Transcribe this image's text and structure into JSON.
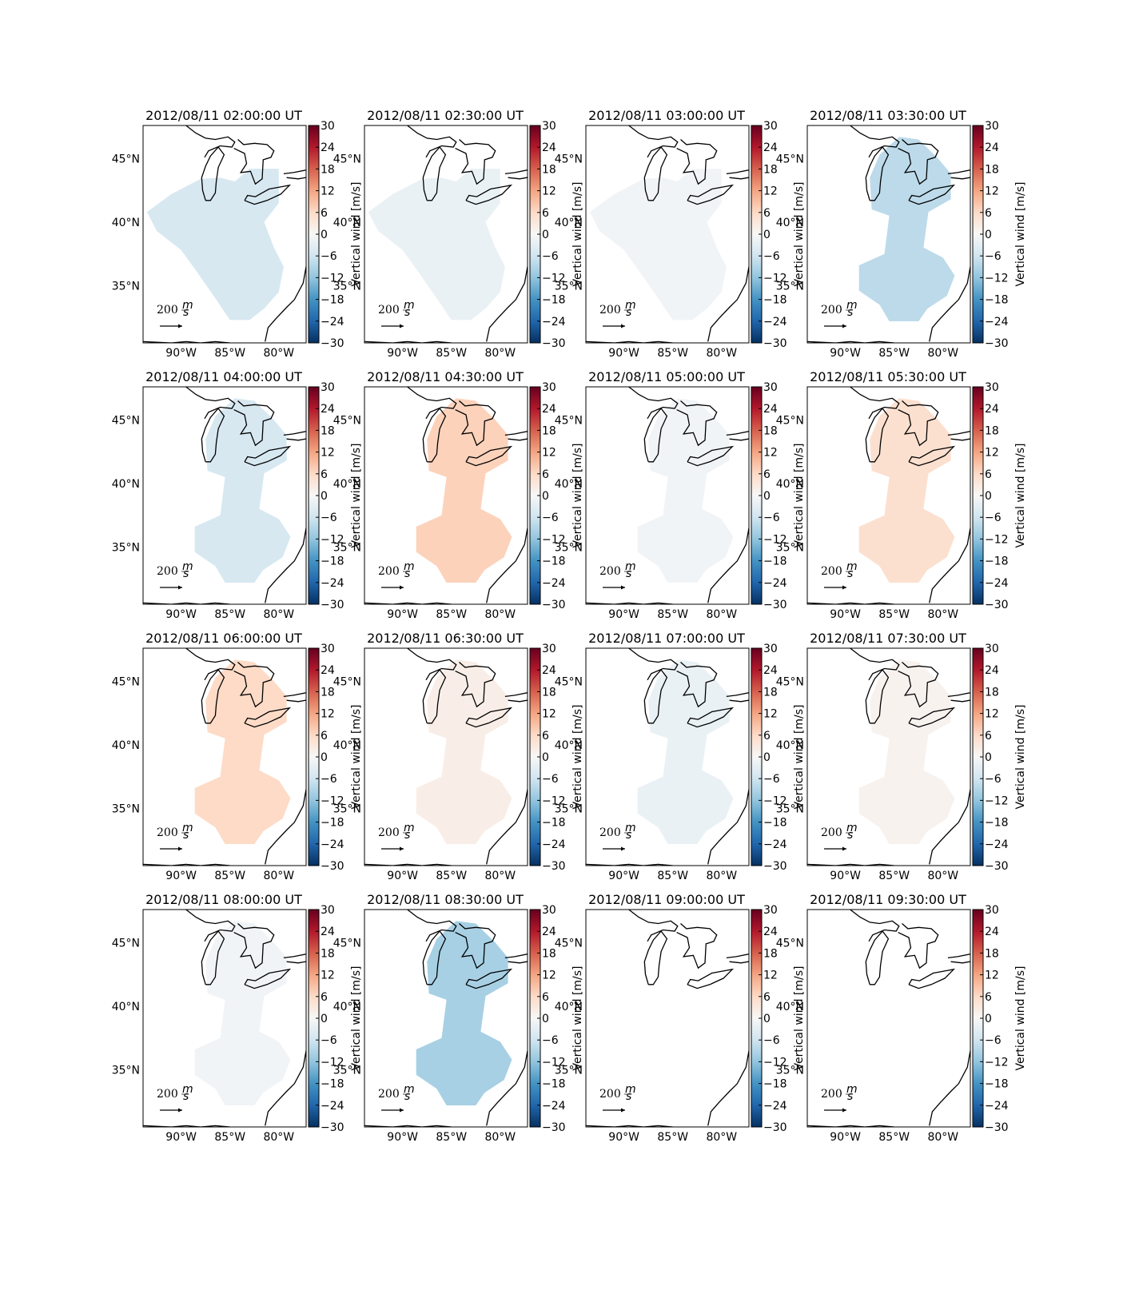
{
  "panels": [
    {
      "title": "2012/08/11 02:00:00 UT",
      "value": -5
    },
    {
      "title": "2012/08/11 02:30:00 UT",
      "value": -2
    },
    {
      "title": "2012/08/11 03:00:00 UT",
      "value": -1
    },
    {
      "title": "2012/08/11 03:30:00 UT",
      "value": -8
    },
    {
      "title": "2012/08/11 04:00:00 UT",
      "value": -5
    },
    {
      "title": "2012/08/11 04:30:00 UT",
      "value": 7
    },
    {
      "title": "2012/08/11 05:00:00 UT",
      "value": -1
    },
    {
      "title": "2012/08/11 05:30:00 UT",
      "value": 5
    },
    {
      "title": "2012/08/11 06:00:00 UT",
      "value": 6
    },
    {
      "title": "2012/08/11 06:30:00 UT",
      "value": 2
    },
    {
      "title": "2012/08/11 07:00:00 UT",
      "value": -2
    },
    {
      "title": "2012/08/11 07:30:00 UT",
      "value": 1
    },
    {
      "title": "2012/08/11 08:00:00 UT",
      "value": -1
    },
    {
      "title": "2012/08/11 08:30:00 UT",
      "value": -10
    },
    {
      "title": "2012/08/11 09:00:00 UT",
      "value": null
    },
    {
      "title": "2012/08/11 09:30:00 UT",
      "value": null
    }
  ],
  "xlim": [
    -93.9,
    -77.2
  ],
  "ylim": [
    30.5,
    47.6
  ],
  "xticks": [
    {
      "value": -90,
      "label": "90°W"
    },
    {
      "value": -85,
      "label": "85°W"
    },
    {
      "value": -80,
      "label": "80°W"
    }
  ],
  "yticks": [
    {
      "value": 35,
      "label": "35°N"
    },
    {
      "value": 40,
      "label": "40°N"
    },
    {
      "value": 45,
      "label": "45°N"
    }
  ],
  "colorbar": {
    "label": "Vertical wind [m/s]",
    "lim": [
      -30,
      30
    ],
    "ticks": [
      30,
      24,
      18,
      12,
      6,
      0,
      {
        "value": -6,
        "label": "−6"
      },
      {
        "value": -12,
        "label": "−12"
      },
      {
        "value": -18,
        "label": "−18"
      },
      {
        "value": -24,
        "label": "−24"
      },
      {
        "value": -30,
        "label": "−30"
      }
    ]
  },
  "quiver_key": {
    "value": 200,
    "unit_top": "m",
    "unit_bottom": "s"
  }
}
